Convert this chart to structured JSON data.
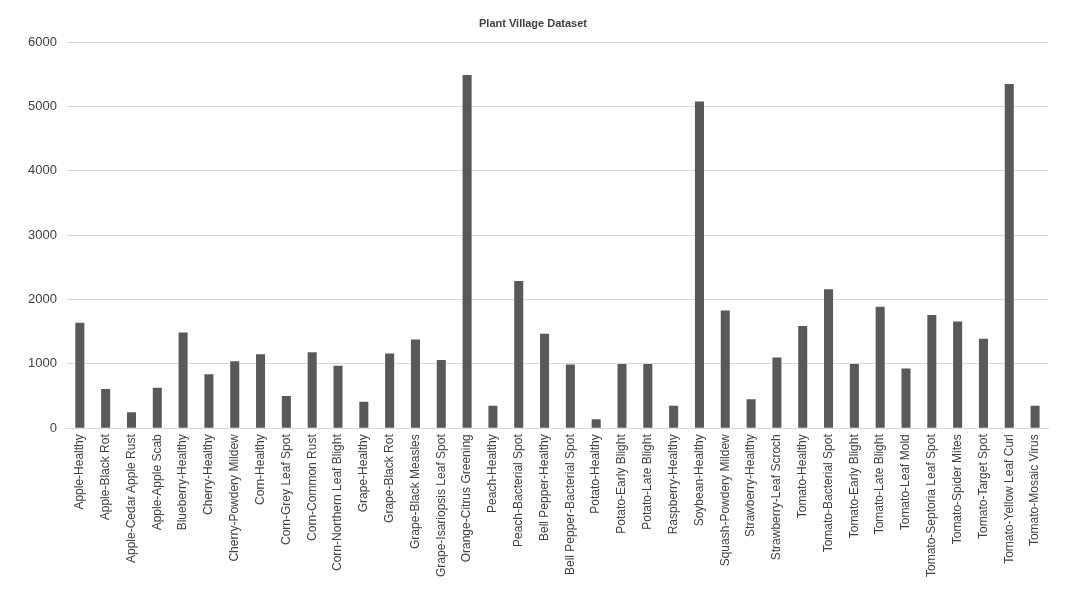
{
  "chart_data": {
    "type": "bar",
    "title": "Plant Village Dataset",
    "categories": [
      "Apple-Healthy",
      "Apple-Black Rot",
      "Apple-Cedar Apple Rust",
      "Apple-Apple Scab",
      "Blueberry-Healthy",
      "Cherry-Healthy",
      "Cherry-Powdery Mildew",
      "Corn-Healthy",
      "Corn-Grey Leaf Spot",
      "Corn-Common Rust",
      "Corn-Northern Leaf Blight",
      "Grape-Healthy",
      "Grape-Black Rot",
      "Grape-Black Measles",
      "Grape-Isariopsis Leaf Spot",
      "Orange-Citrus Greening",
      "Peach-Healthy",
      "Peach-Bacterial Spot",
      "Bell Pepper-Healthy",
      "Bell Pepper-Bacterial Spot",
      "Potato-Healthy",
      "Potato-Early Blight",
      "Potato-Late Blight",
      "Raspberry-Healthy",
      "Soybean-Healthy",
      "Squash-Powdery Mildew",
      "Strawberry-Healthy",
      "Strawberry-Leaf Scroch",
      "Tomato-Healthy",
      "Tomato-Bacterial Spot",
      "Tomato-Early Blight",
      "Tomato-Late Blight",
      "Tomato-Leaf Mold",
      "Tomato-Septoria Leaf Spot",
      "Tomato-Spider Mites",
      "Tomato-Target Spot",
      "Tomato-Yellow Leaf Curl",
      "Tomato-Mosaic Virus"
    ],
    "values": [
      1640,
      610,
      250,
      630,
      1490,
      840,
      1040,
      1150,
      500,
      1180,
      970,
      410,
      1160,
      1380,
      1060,
      5490,
      350,
      2290,
      1470,
      990,
      140,
      1000,
      1000,
      350,
      5080,
      1830,
      450,
      1100,
      1590,
      2160,
      1000,
      1890,
      930,
      1760,
      1660,
      1390,
      5350,
      350
    ],
    "color": "#595959",
    "ylim": [
      0,
      6000
    ],
    "yticks": [
      0,
      1000,
      2000,
      3000,
      4000,
      5000,
      6000
    ],
    "grid": "y"
  }
}
